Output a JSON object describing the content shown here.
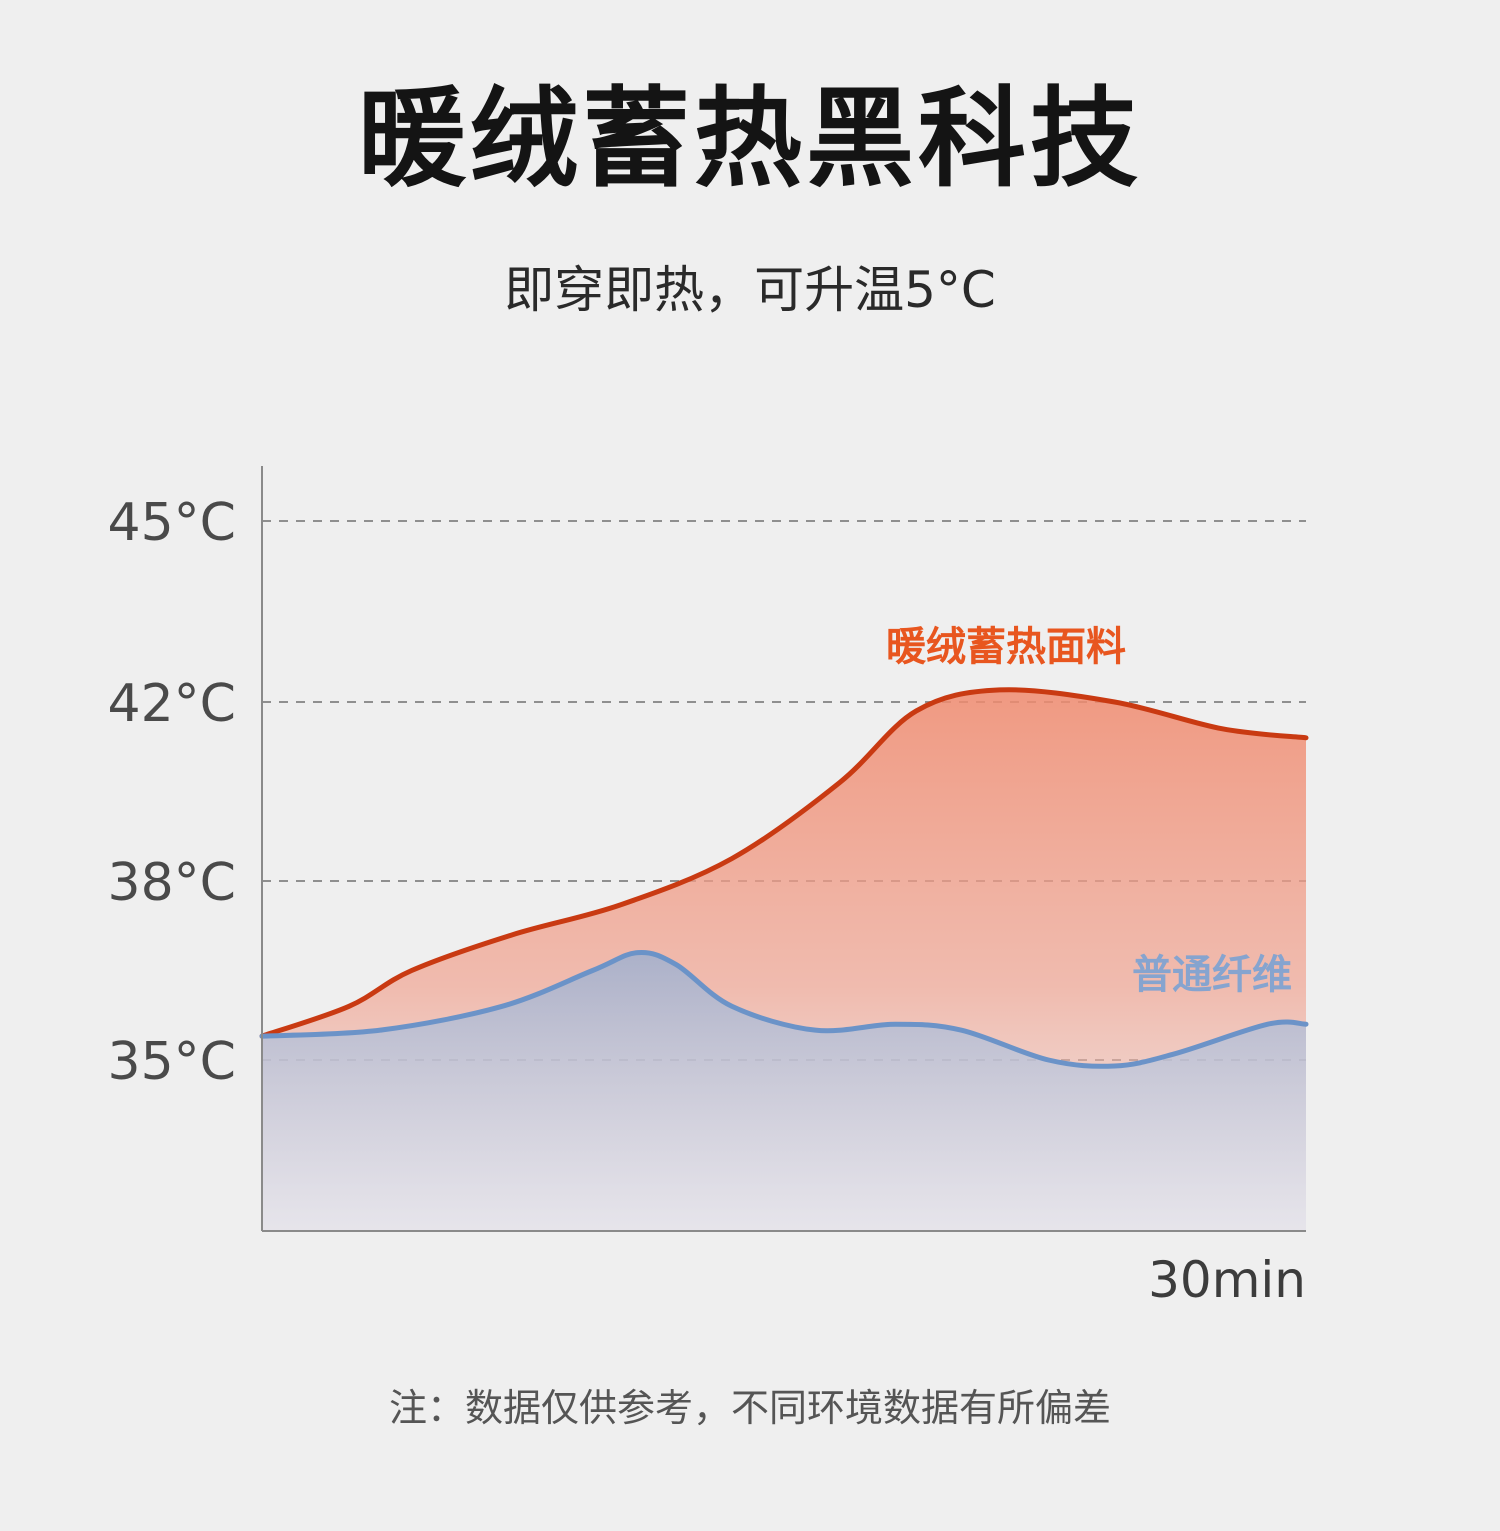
{
  "title": "暖绒蓄热黑科技",
  "subtitle": "即穿即热，可升温5°C",
  "note": "注：数据仅供参考，不同环境数据有所偏差",
  "colors": {
    "warm": "#c93a12",
    "warm_label": "#e8561f",
    "normal": "#6b93c8",
    "normal_label": "#86a4cf"
  },
  "chart_data": {
    "type": "area",
    "y_ticks": [
      {
        "value": 35,
        "label": "35°C"
      },
      {
        "value": 38,
        "label": "38°C"
      },
      {
        "value": 42,
        "label": "42°C"
      },
      {
        "value": 45,
        "label": "45°C"
      }
    ],
    "x_tick_label": "30min",
    "xlim": [
      0,
      30
    ],
    "grid": "dashed horizontal",
    "series": [
      {
        "name": "暖绒蓄热面料",
        "x": [
          0,
          2.5,
          4.3,
          7.2,
          10.3,
          13.5,
          16.6,
          18.8,
          21.2,
          24.5,
          27.6,
          30
        ],
        "y": [
          35.4,
          35.9,
          36.5,
          37.1,
          37.6,
          38.5,
          40.2,
          41.8,
          42.2,
          42.0,
          41.4,
          41.2
        ]
      },
      {
        "name": "普通纤维",
        "x": [
          0,
          3.4,
          6.9,
          9.5,
          10.8,
          11.9,
          13.5,
          15.9,
          18.2,
          20.1,
          22.6,
          24.5,
          26.2,
          28.9,
          30
        ],
        "y": [
          35.4,
          35.5,
          35.9,
          36.5,
          36.8,
          36.6,
          35.9,
          35.5,
          35.6,
          35.5,
          35.0,
          34.9,
          35.1,
          35.6,
          35.6
        ]
      }
    ]
  }
}
